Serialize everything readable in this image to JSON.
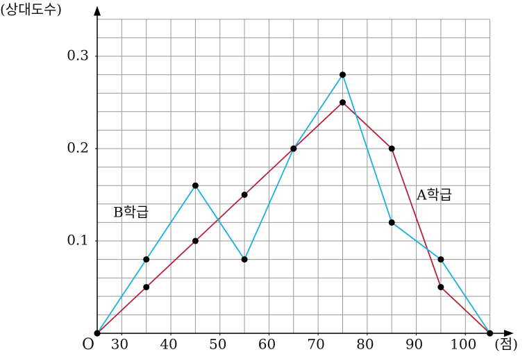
{
  "chart_data": {
    "type": "line",
    "y_axis_label": "(상대도수)",
    "x_axis_label": "(점)",
    "origin_label": "O",
    "x": [
      25,
      35,
      45,
      55,
      65,
      75,
      85,
      95,
      105
    ],
    "series": [
      {
        "name": "A학급",
        "color": "#b5213a",
        "values": [
          0,
          0.05,
          0.1,
          0.15,
          0.2,
          0.25,
          0.2,
          0.05,
          0
        ]
      },
      {
        "name": "B학급",
        "color": "#1ab0e0",
        "values": [
          0,
          0.08,
          0.16,
          0.08,
          0.2,
          0.28,
          0.12,
          0.08,
          0
        ]
      }
    ],
    "xlim": [
      25,
      109
    ],
    "ylim": [
      0,
      0.35
    ],
    "xticks": [
      30,
      40,
      50,
      60,
      70,
      80,
      90,
      100
    ],
    "yticks": [
      0.1,
      0.2,
      0.3
    ],
    "x_gridlines": [
      30,
      35,
      40,
      45,
      50,
      55,
      60,
      65,
      70,
      75,
      80,
      85,
      90,
      95,
      100,
      105
    ],
    "y_gridlines": [
      0.02,
      0.04,
      0.06,
      0.08,
      0.1,
      0.12,
      0.14,
      0.16,
      0.18,
      0.2,
      0.22,
      0.24,
      0.26,
      0.28,
      0.3,
      0.32,
      0.34
    ],
    "grid": true
  }
}
